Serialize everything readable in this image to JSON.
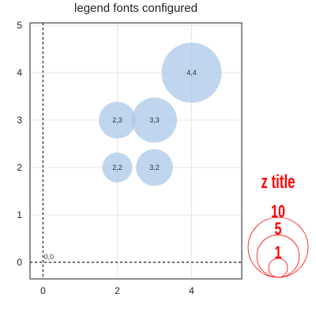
{
  "chart_data": {
    "type": "bubble",
    "title": "legend fonts configured",
    "xlabel": "",
    "ylabel": "",
    "xlim": [
      -0.35,
      5.35
    ],
    "ylim": [
      -0.35,
      5.05
    ],
    "x_ticks": [
      0,
      2,
      4
    ],
    "y_ticks": [
      0,
      1,
      2,
      3,
      4,
      5
    ],
    "grid": true,
    "zero_lines": true,
    "bubble_color": "#a9c8e8",
    "legend_color": "#ff0000",
    "points": [
      {
        "label": "0,0",
        "x": 0,
        "y": 0,
        "z": 0
      },
      {
        "label": "2,2",
        "x": 2,
        "y": 2,
        "z": 4
      },
      {
        "label": "3,2",
        "x": 3,
        "y": 2,
        "z": 6
      },
      {
        "label": "2,3",
        "x": 2,
        "y": 3,
        "z": 6
      },
      {
        "label": "3,3",
        "x": 3,
        "y": 3,
        "z": 9
      },
      {
        "label": "4,4",
        "x": 4,
        "y": 4,
        "z": 16
      }
    ],
    "legend": {
      "title": "z title",
      "placement": "right",
      "sizes": [
        10,
        5,
        1
      ]
    }
  }
}
